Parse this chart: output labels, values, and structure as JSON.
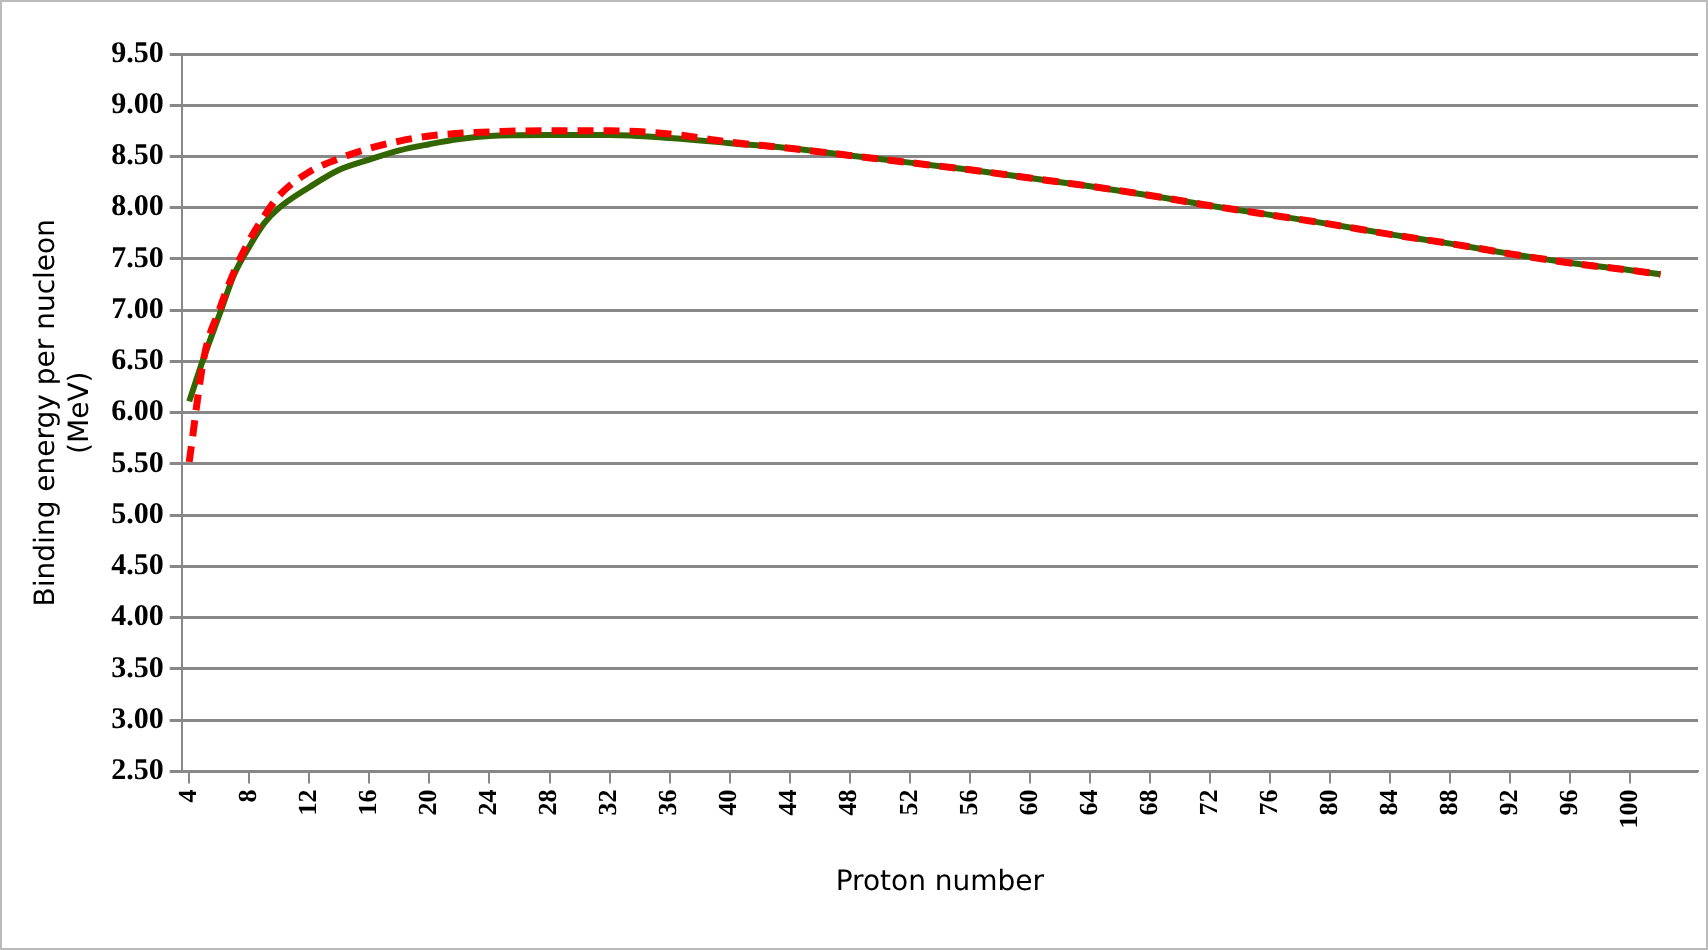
{
  "chart_data": {
    "type": "line",
    "xlabel": "Proton number",
    "ylabel": "Binding energy per nucleon (MeV)",
    "xlim": [
      3.5,
      104.5
    ],
    "xticks": [
      4,
      8,
      12,
      16,
      20,
      24,
      28,
      32,
      36,
      40,
      44,
      48,
      52,
      56,
      60,
      64,
      68,
      72,
      76,
      80,
      84,
      88,
      92,
      96,
      100
    ],
    "ylim": [
      2.5,
      9.5
    ],
    "yticks": [
      {
        "value": 2.5,
        "label": "2.50"
      },
      {
        "value": 3,
        "label": "3.00"
      },
      {
        "value": 3.5,
        "label": "3.50"
      },
      {
        "value": 4,
        "label": "4.00"
      },
      {
        "value": 4.5,
        "label": "4.50"
      },
      {
        "value": 5,
        "label": "5.00"
      },
      {
        "value": 5.5,
        "label": "5.50"
      },
      {
        "value": 6,
        "label": "6.00"
      },
      {
        "value": 6.5,
        "label": "6.50"
      },
      {
        "value": 7,
        "label": "7.00"
      },
      {
        "value": 7.5,
        "label": "7.50"
      },
      {
        "value": 8,
        "label": "8.00"
      },
      {
        "value": 8.5,
        "label": "8.50"
      },
      {
        "value": 9,
        "label": "9.00"
      },
      {
        "value": 9.5,
        "label": "9.50"
      }
    ],
    "grid": "y",
    "legend": false,
    "marker": "none",
    "series": [
      {
        "color": "#ff0000",
        "line_style": "dashed",
        "x": [
          4,
          5,
          6,
          7,
          8,
          9,
          10,
          12,
          14,
          16,
          18,
          20,
          24,
          28,
          32,
          36,
          40,
          44,
          48,
          52,
          56,
          60,
          64,
          68,
          72,
          76,
          80,
          84,
          88,
          92,
          96,
          100,
          102
        ],
        "values": [
          5.52,
          6.55,
          7.0,
          7.38,
          7.68,
          7.92,
          8.12,
          8.35,
          8.48,
          8.58,
          8.65,
          8.7,
          8.74,
          8.75,
          8.75,
          8.72,
          8.64,
          8.58,
          8.51,
          8.44,
          8.37,
          8.29,
          8.21,
          8.12,
          8.02,
          7.93,
          7.84,
          7.74,
          7.65,
          7.55,
          7.46,
          7.39,
          7.35
        ]
      },
      {
        "color": "#336600",
        "line_style": "solid",
        "x": [
          4,
          5,
          6,
          7,
          8,
          9,
          10,
          12,
          14,
          16,
          18,
          20,
          22,
          24,
          28,
          32,
          36,
          40,
          44,
          48,
          52,
          56,
          60,
          64,
          68,
          72,
          76,
          80,
          84,
          88,
          92,
          96,
          100,
          102
        ],
        "values": [
          6.11,
          6.55,
          6.95,
          7.35,
          7.62,
          7.85,
          8.0,
          8.2,
          8.37,
          8.47,
          8.56,
          8.62,
          8.67,
          8.7,
          8.71,
          8.71,
          8.68,
          8.63,
          8.58,
          8.51,
          8.44,
          8.37,
          8.29,
          8.21,
          8.12,
          8.02,
          7.93,
          7.84,
          7.74,
          7.65,
          7.55,
          7.46,
          7.39,
          7.35
        ]
      }
    ]
  }
}
